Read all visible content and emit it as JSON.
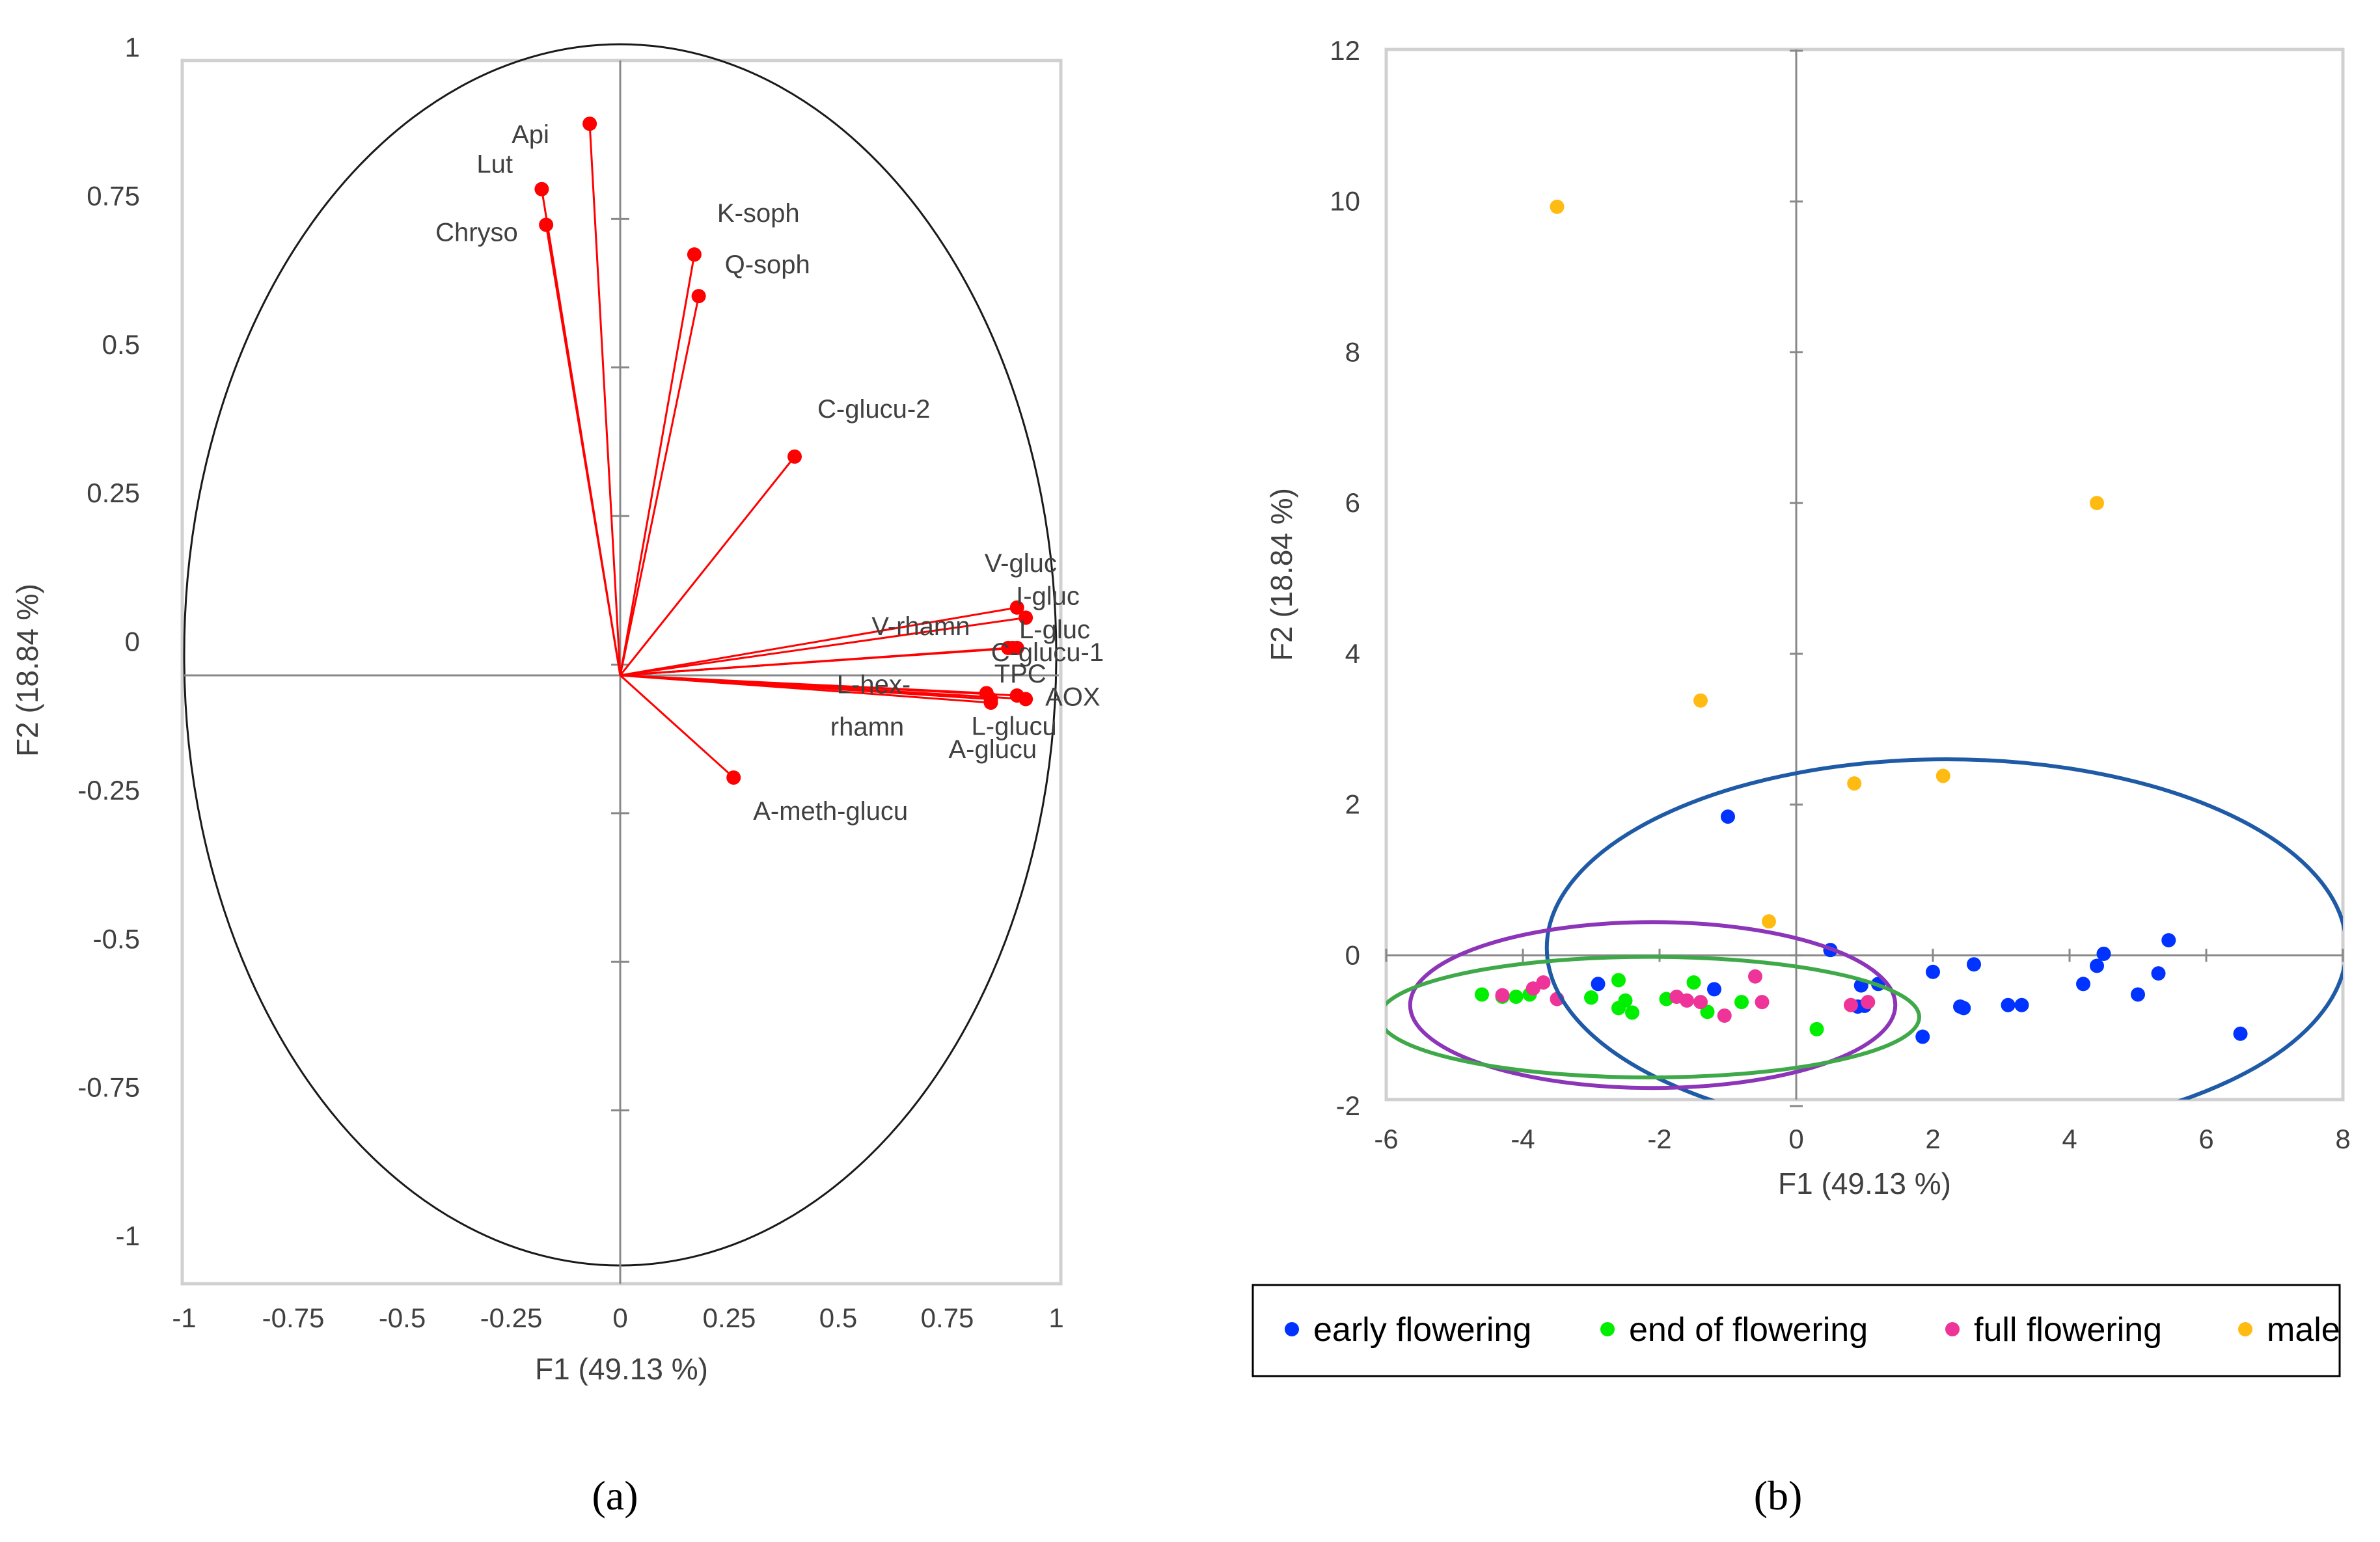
{
  "chart_data": [
    {
      "type": "scatter",
      "panel_label": "(a)",
      "xlabel": "F1 (49.13 %)",
      "ylabel": "F2 (18.84 %)",
      "xlim": [
        -1,
        1
      ],
      "ylim": [
        -1,
        1
      ],
      "x_ticks": [
        "-1",
        "-0.75",
        "-0.5",
        "-0.25",
        "0",
        "0.25",
        "0.5",
        "0.75",
        "1"
      ],
      "y_ticks": [
        "1",
        "0.75",
        "0.5",
        "0.25",
        "0",
        "-0.25",
        "-0.5",
        "-0.75",
        "-1"
      ],
      "vector_color": "#ff0000",
      "circle_color": "#000000",
      "variables": [
        {
          "name": "Api",
          "x": -0.07,
          "y": 0.91
        },
        {
          "name": "Lut",
          "x": -0.18,
          "y": 0.8
        },
        {
          "name": "Chryso",
          "x": -0.17,
          "y": 0.74
        },
        {
          "name": "K-soph",
          "x": 0.17,
          "y": 0.69
        },
        {
          "name": "Q-soph",
          "x": 0.18,
          "y": 0.62
        },
        {
          "name": "C-glucu-2",
          "x": 0.4,
          "y": 0.35
        },
        {
          "name": "V-gluc",
          "x": 0.91,
          "y": 0.096
        },
        {
          "name": "V-rhamn",
          "x": 0.89,
          "y": 0.028
        },
        {
          "name": "I-gluc",
          "x": 0.93,
          "y": 0.079
        },
        {
          "name": "L-gluc",
          "x": 0.9,
          "y": 0.028
        },
        {
          "name": "C-glucu-1",
          "x": 0.91,
          "y": 0.028
        },
        {
          "name": "TPC",
          "x": 0.91,
          "y": -0.052
        },
        {
          "name": "AOX",
          "x": 0.93,
          "y": -0.058
        },
        {
          "name": "L-hex-rhamn",
          "x": 0.84,
          "y": -0.048
        },
        {
          "name": "L-glucu",
          "x": 0.85,
          "y": -0.058
        },
        {
          "name": "A-glucu",
          "x": 0.85,
          "y": -0.064
        },
        {
          "name": "A-meth-glucu",
          "x": 0.26,
          "y": -0.19
        }
      ]
    },
    {
      "type": "scatter",
      "panel_label": "(b)",
      "xlabel": "F1 (49.13 %)",
      "ylabel": "F2 (18.84 %)",
      "xlim": [
        -6,
        8
      ],
      "ylim": [
        -2,
        12
      ],
      "x_ticks": [
        "-6",
        "-4",
        "-2",
        "0",
        "2",
        "4",
        "6",
        "8"
      ],
      "y_ticks": [
        "12",
        "10",
        "8",
        "6",
        "4",
        "2",
        "0",
        "-2"
      ],
      "series": [
        {
          "name": "early flowering",
          "color": "#0033ff",
          "points": [
            [
              -1.0,
              1.84
            ],
            [
              0.5,
              0.07
            ],
            [
              2.0,
              -0.22
            ],
            [
              2.6,
              -0.12
            ],
            [
              5.45,
              0.2
            ],
            [
              4.5,
              0.02
            ],
            [
              4.4,
              -0.14
            ],
            [
              5.3,
              -0.24
            ],
            [
              4.2,
              -0.38
            ],
            [
              5.0,
              -0.52
            ],
            [
              3.1,
              -0.66
            ],
            [
              3.3,
              -0.66
            ],
            [
              2.4,
              -0.68
            ],
            [
              2.45,
              -0.7
            ],
            [
              1.2,
              -0.38
            ],
            [
              0.95,
              -0.4
            ],
            [
              1.85,
              -1.08
            ],
            [
              6.5,
              -1.04
            ],
            [
              -2.9,
              -0.38
            ],
            [
              -1.2,
              -0.45
            ],
            [
              1.0,
              -0.67
            ],
            [
              0.9,
              -0.68
            ]
          ]
        },
        {
          "name": "end of flowering",
          "color": "#00ee00",
          "points": [
            [
              -4.6,
              -0.52
            ],
            [
              -4.3,
              -0.55
            ],
            [
              -4.1,
              -0.55
            ],
            [
              -3.9,
              -0.52
            ],
            [
              -3.0,
              -0.56
            ],
            [
              -2.6,
              -0.33
            ],
            [
              -2.5,
              -0.6
            ],
            [
              -2.6,
              -0.7
            ],
            [
              -2.4,
              -0.76
            ],
            [
              -1.9,
              -0.58
            ],
            [
              -1.5,
              -0.36
            ],
            [
              -1.3,
              -0.75
            ],
            [
              -0.8,
              -0.62
            ],
            [
              0.3,
              -0.98
            ]
          ]
        },
        {
          "name": "full flowering",
          "color": "#ee3399",
          "points": [
            [
              -4.3,
              -0.53
            ],
            [
              -3.7,
              -0.36
            ],
            [
              -3.5,
              -0.58
            ],
            [
              -3.85,
              -0.44
            ],
            [
              -1.75,
              -0.55
            ],
            [
              -1.6,
              -0.6
            ],
            [
              -1.4,
              -0.62
            ],
            [
              -1.05,
              -0.8
            ],
            [
              -0.6,
              -0.28
            ],
            [
              -0.5,
              -0.62
            ],
            [
              0.8,
              -0.66
            ],
            [
              1.05,
              -0.62
            ]
          ]
        },
        {
          "name": "male",
          "color": "#ffbb11",
          "points": [
            [
              -3.5,
              9.93
            ],
            [
              4.4,
              6.0
            ],
            [
              -1.4,
              3.38
            ],
            [
              0.85,
              2.28
            ],
            [
              2.15,
              2.38
            ],
            [
              -0.4,
              0.45
            ]
          ]
        }
      ],
      "ellipses": [
        {
          "series": "early flowering",
          "color": "#1f5aa6",
          "center": [
            2.2,
            0.1
          ],
          "semi_axes": [
            5.85,
            2.5
          ]
        },
        {
          "series": "full flowering",
          "color": "#8c35b8",
          "center": [
            -2.1,
            -0.66
          ],
          "semi_axes": [
            3.55,
            1.1
          ]
        },
        {
          "series": "end of flowering",
          "color": "#3fa94a",
          "center": [
            -2.15,
            -0.82
          ],
          "semi_axes": [
            3.95,
            0.8
          ]
        }
      ],
      "legend_position": "bottom"
    }
  ]
}
